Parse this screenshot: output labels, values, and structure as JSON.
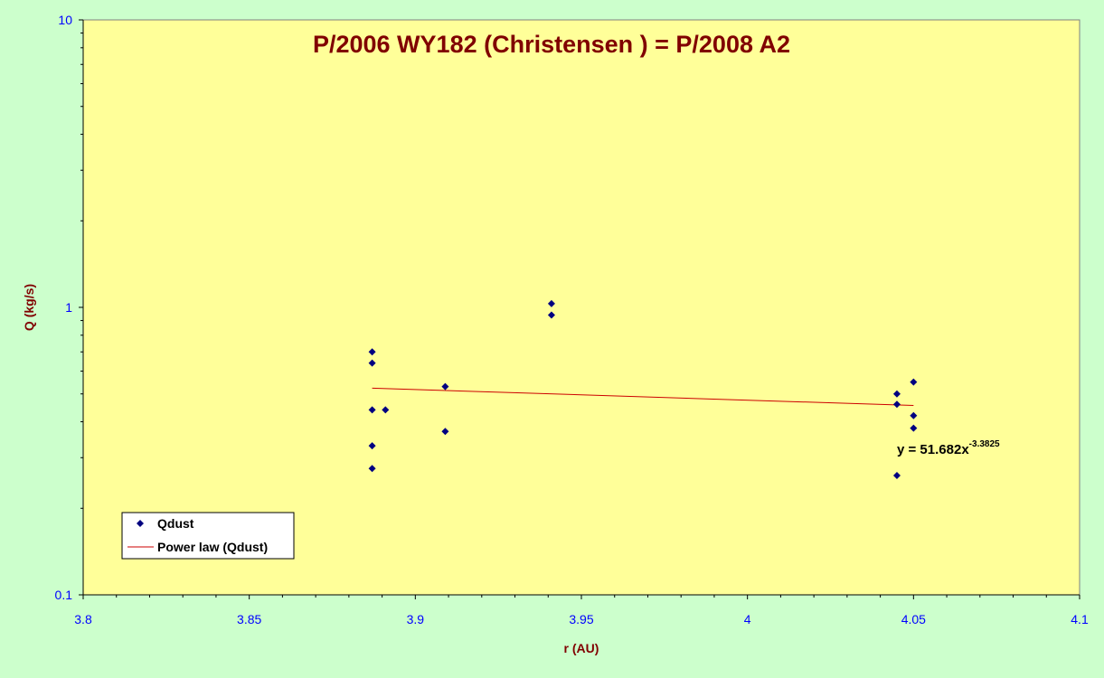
{
  "chart_data": {
    "type": "scatter",
    "title": "P/2006 WY182 (Christensen ) = P/2008 A2",
    "xlabel": "r (AU)",
    "ylabel": "Q (kg/s)",
    "xlim": [
      3.8,
      4.1
    ],
    "ylim": [
      0.1,
      10
    ],
    "y_scale": "log",
    "x_ticks": [
      3.8,
      3.85,
      3.9,
      3.95,
      4.0,
      4.05,
      4.1
    ],
    "x_tick_labels": [
      "3.8",
      "3.85",
      "3.9",
      "3.95",
      "4",
      "4.05",
      "4.1"
    ],
    "y_ticks": [
      0.1,
      1,
      10
    ],
    "y_tick_labels": [
      "0.1",
      "1",
      "10"
    ],
    "grid": false,
    "legend_position": "bottom-left",
    "series": [
      {
        "name": "Qdust",
        "marker": "diamond",
        "color": "#000080",
        "points": [
          {
            "x": 3.887,
            "y": 0.7
          },
          {
            "x": 3.887,
            "y": 0.64
          },
          {
            "x": 3.887,
            "y": 0.44
          },
          {
            "x": 3.887,
            "y": 0.33
          },
          {
            "x": 3.887,
            "y": 0.275
          },
          {
            "x": 3.891,
            "y": 0.44
          },
          {
            "x": 3.909,
            "y": 0.53
          },
          {
            "x": 3.909,
            "y": 0.37
          },
          {
            "x": 3.941,
            "y": 1.03
          },
          {
            "x": 3.941,
            "y": 0.94
          },
          {
            "x": 4.045,
            "y": 0.5
          },
          {
            "x": 4.045,
            "y": 0.46
          },
          {
            "x": 4.045,
            "y": 0.26
          },
          {
            "x": 4.05,
            "y": 0.55
          },
          {
            "x": 4.05,
            "y": 0.42
          },
          {
            "x": 4.05,
            "y": 0.38
          }
        ]
      },
      {
        "name": "Power law (Qdust)",
        "type": "line",
        "color": "#cc0000",
        "coefficient": 51.682,
        "exponent": -3.3825,
        "x_range": [
          3.887,
          4.05
        ]
      }
    ],
    "annotation": {
      "text_prefix": "y = 51.682x",
      "text_sup": "-3.3825"
    }
  }
}
